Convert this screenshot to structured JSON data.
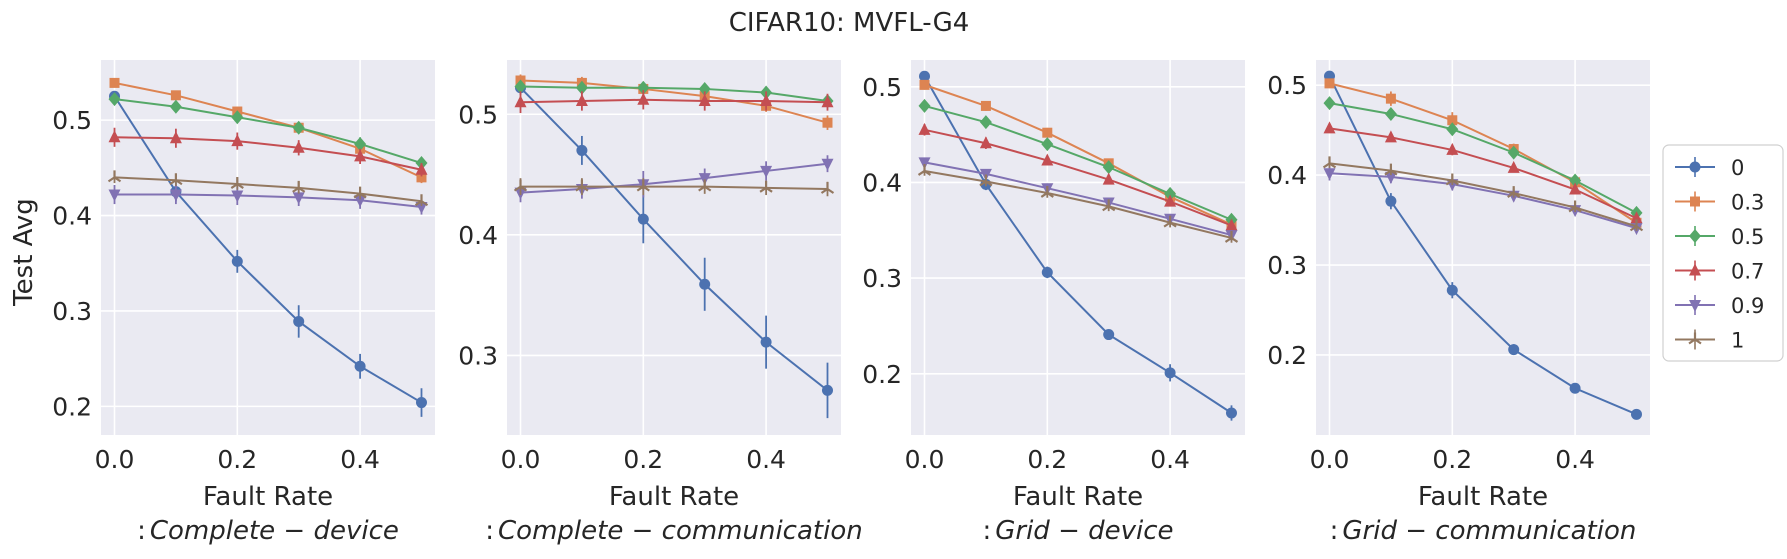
{
  "chart_data": {
    "type": "line",
    "title": "CIFAR10: MVFL-G4",
    "ylabel": "Test Avg",
    "legend": {
      "position": "right",
      "entries": [
        "0",
        "0.3",
        "0.5",
        "0.7",
        "0.9",
        "1"
      ]
    },
    "series_styles": [
      {
        "name": "0",
        "color": "#4c72b0",
        "marker": "circle"
      },
      {
        "name": "0.3",
        "color": "#dd8452",
        "marker": "square"
      },
      {
        "name": "0.5",
        "color": "#55a868",
        "marker": "diamond"
      },
      {
        "name": "0.7",
        "color": "#c44e52",
        "marker": "triangle-up"
      },
      {
        "name": "0.9",
        "color": "#8172b3",
        "marker": "triangle-down"
      },
      {
        "name": "1",
        "color": "#937860",
        "marker": "tri"
      }
    ],
    "subplots": [
      {
        "xlabel": "Fault Rate",
        "sublabel_prefix": ":",
        "sublabel": "Complete − device",
        "x": [
          0.0,
          0.1,
          0.2,
          0.3,
          0.4,
          0.5
        ],
        "xticks": [
          "0.0",
          "0.2",
          "0.4"
        ],
        "xlim": [
          -0.022,
          0.522
        ],
        "yticks": [
          "0.2",
          "0.3",
          "0.4",
          "0.5"
        ],
        "ylim": [
          0.17,
          0.563
        ],
        "series": [
          {
            "name": "0",
            "values": [
              0.525,
              0.425,
              0.352,
              0.289,
              0.242,
              0.204
            ],
            "err": [
              0.005,
              0.01,
              0.012,
              0.017,
              0.013,
              0.015
            ]
          },
          {
            "name": "0.3",
            "values": [
              0.539,
              0.526,
              0.509,
              0.492,
              0.47,
              0.44
            ],
            "err": [
              0.004,
              0.005,
              0.004,
              0.006,
              0.006,
              0.006
            ]
          },
          {
            "name": "0.5",
            "values": [
              0.522,
              0.514,
              0.503,
              0.492,
              0.475,
              0.455
            ],
            "err": [
              0.005,
              0.005,
              0.006,
              0.006,
              0.007,
              0.006
            ]
          },
          {
            "name": "0.7",
            "values": [
              0.482,
              0.481,
              0.478,
              0.471,
              0.462,
              0.448
            ],
            "err": [
              0.01,
              0.01,
              0.009,
              0.008,
              0.008,
              0.007
            ]
          },
          {
            "name": "0.9",
            "values": [
              0.422,
              0.422,
              0.421,
              0.419,
              0.416,
              0.409
            ],
            "err": [
              0.01,
              0.01,
              0.01,
              0.009,
              0.009,
              0.008
            ]
          },
          {
            "name": "1",
            "values": [
              0.44,
              0.437,
              0.433,
              0.429,
              0.423,
              0.415
            ],
            "err": [
              0.006,
              0.006,
              0.006,
              0.006,
              0.006,
              0.005
            ]
          }
        ]
      },
      {
        "xlabel": "Fault Rate",
        "sublabel_prefix": ":",
        "sublabel": "Complete − communication",
        "x": [
          0.0,
          0.1,
          0.2,
          0.3,
          0.4,
          0.5
        ],
        "xticks": [
          "0.0",
          "0.2",
          "0.4"
        ],
        "xlim": [
          -0.022,
          0.522
        ],
        "yticks": [
          "0.3",
          "0.4",
          "0.5"
        ],
        "ylim": [
          0.234,
          0.545
        ],
        "series": [
          {
            "name": "0",
            "values": [
              0.522,
              0.47,
              0.413,
              0.359,
              0.311,
              0.271
            ],
            "err": [
              0.006,
              0.012,
              0.02,
              0.022,
              0.022,
              0.023
            ]
          },
          {
            "name": "0.3",
            "values": [
              0.528,
              0.526,
              0.521,
              0.515,
              0.507,
              0.493
            ],
            "err": [
              0.005,
              0.005,
              0.005,
              0.005,
              0.005,
              0.006
            ]
          },
          {
            "name": "0.5",
            "values": [
              0.523,
              0.522,
              0.522,
              0.521,
              0.518,
              0.511
            ],
            "err": [
              0.004,
              0.004,
              0.004,
              0.004,
              0.004,
              0.004
            ]
          },
          {
            "name": "0.7",
            "values": [
              0.51,
              0.511,
              0.512,
              0.511,
              0.511,
              0.51
            ],
            "err": [
              0.009,
              0.008,
              0.008,
              0.008,
              0.008,
              0.007
            ]
          },
          {
            "name": "0.9",
            "values": [
              0.435,
              0.438,
              0.442,
              0.447,
              0.453,
              0.459
            ],
            "err": [
              0.008,
              0.008,
              0.011,
              0.008,
              0.008,
              0.007
            ]
          },
          {
            "name": "1",
            "values": [
              0.44,
              0.44,
              0.44,
              0.44,
              0.439,
              0.438
            ],
            "err": [
              0.007,
              0.007,
              0.007,
              0.006,
              0.006,
              0.006
            ]
          }
        ]
      },
      {
        "xlabel": "Fault Rate",
        "sublabel_prefix": ":",
        "sublabel": "Grid − device",
        "x": [
          0.0,
          0.1,
          0.2,
          0.3,
          0.4,
          0.5
        ],
        "xticks": [
          "0.0",
          "0.2",
          "0.4"
        ],
        "xlim": [
          -0.022,
          0.522
        ],
        "yticks": [
          "0.2",
          "0.3",
          "0.4",
          "0.5"
        ],
        "ylim": [
          0.136,
          0.528
        ],
        "series": [
          {
            "name": "0",
            "values": [
              0.511,
              0.398,
              0.306,
              0.241,
              0.201,
              0.159
            ],
            "err": [
              0.003,
              0.006,
              0.006,
              0.005,
              0.009,
              0.008
            ]
          },
          {
            "name": "0.3",
            "values": [
              0.502,
              0.48,
              0.452,
              0.42,
              0.385,
              0.356
            ],
            "err": [
              0.005,
              0.005,
              0.005,
              0.005,
              0.005,
              0.005
            ]
          },
          {
            "name": "0.5",
            "values": [
              0.48,
              0.463,
              0.44,
              0.416,
              0.388,
              0.361
            ],
            "err": [
              0.004,
              0.005,
              0.005,
              0.005,
              0.005,
              0.004
            ]
          },
          {
            "name": "0.7",
            "values": [
              0.455,
              0.441,
              0.423,
              0.403,
              0.38,
              0.355
            ],
            "err": [
              0.006,
              0.006,
              0.005,
              0.005,
              0.005,
              0.005
            ]
          },
          {
            "name": "0.9",
            "values": [
              0.421,
              0.409,
              0.394,
              0.379,
              0.362,
              0.345
            ],
            "err": [
              0.005,
              0.005,
              0.005,
              0.005,
              0.005,
              0.005
            ]
          },
          {
            "name": "1",
            "values": [
              0.412,
              0.401,
              0.389,
              0.375,
              0.358,
              0.342
            ],
            "err": [
              0.005,
              0.005,
              0.005,
              0.005,
              0.005,
              0.005
            ]
          }
        ]
      },
      {
        "xlabel": "Fault Rate",
        "sublabel_prefix": ":",
        "sublabel": "Grid − communication",
        "x": [
          0.0,
          0.1,
          0.2,
          0.3,
          0.4,
          0.5
        ],
        "xticks": [
          "0.0",
          "0.2",
          "0.4"
        ],
        "xlim": [
          -0.022,
          0.522
        ],
        "yticks": [
          "0.2",
          "0.3",
          "0.4",
          "0.5"
        ],
        "ylim": [
          0.111,
          0.528
        ],
        "series": [
          {
            "name": "0",
            "values": [
              0.51,
              0.371,
              0.272,
              0.206,
              0.163,
              0.134
            ],
            "err": [
              0.004,
              0.009,
              0.009,
              0.006,
              0.005,
              0.004
            ]
          },
          {
            "name": "0.3",
            "values": [
              0.502,
              0.485,
              0.461,
              0.429,
              0.392,
              0.347
            ],
            "err": [
              0.005,
              0.008,
              0.009,
              0.006,
              0.005,
              0.006
            ]
          },
          {
            "name": "0.5",
            "values": [
              0.48,
              0.468,
              0.451,
              0.425,
              0.394,
              0.358
            ],
            "err": [
              0.004,
              0.005,
              0.006,
              0.005,
              0.005,
              0.005
            ]
          },
          {
            "name": "0.7",
            "values": [
              0.452,
              0.442,
              0.428,
              0.408,
              0.384,
              0.352
            ],
            "err": [
              0.005,
              0.005,
              0.006,
              0.005,
              0.005,
              0.005
            ]
          },
          {
            "name": "0.9",
            "values": [
              0.402,
              0.398,
              0.39,
              0.377,
              0.361,
              0.341
            ],
            "err": [
              0.008,
              0.007,
              0.007,
              0.006,
              0.005,
              0.005
            ]
          },
          {
            "name": "1",
            "values": [
              0.413,
              0.405,
              0.394,
              0.38,
              0.364,
              0.343
            ],
            "err": [
              0.005,
              0.005,
              0.005,
              0.005,
              0.005,
              0.005
            ]
          }
        ]
      }
    ]
  }
}
